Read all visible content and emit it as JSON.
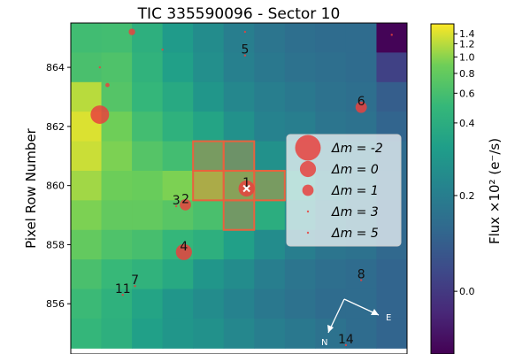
{
  "chart_data": {
    "type": "heatmap",
    "title": "TIC 335590096 - Sector 10",
    "ylabel": "Pixel Row Number",
    "y_ticks": [
      "856",
      "858",
      "860",
      "862",
      "864"
    ],
    "x_range": [
      -0.5,
      10.5
    ],
    "y_range": [
      854.3,
      865.5
    ],
    "grid": false,
    "colorbar": {
      "label": "Flux ×10² (e⁻/s)",
      "colormap": "viridis",
      "ticks": [
        "0.0",
        "0.2",
        "0.4",
        "0.6",
        "0.8",
        "1.0",
        "1.2",
        "1.4"
      ],
      "tick_values": [
        0.0,
        0.2,
        0.4,
        0.6,
        0.8,
        1.0,
        1.2,
        1.4
      ]
    },
    "rows": [
      {
        "row": 865,
        "values": [
          0.57,
          0.58,
          0.42,
          0.32,
          0.26,
          0.2,
          0.17,
          0.15,
          0.14,
          0.14,
          -0.3
        ]
      },
      {
        "row": 864,
        "values": [
          0.62,
          0.66,
          0.46,
          0.34,
          0.27,
          0.21,
          0.18,
          0.16,
          0.15,
          0.14,
          0.02
        ]
      },
      {
        "row": 863,
        "values": [
          1.2,
          0.7,
          0.5,
          0.38,
          0.3,
          0.24,
          0.2,
          0.18,
          0.16,
          0.15,
          0.1
        ]
      },
      {
        "row": 862,
        "values": [
          1.4,
          0.9,
          0.58,
          0.44,
          0.36,
          0.28,
          0.22,
          0.2,
          0.17,
          0.16,
          0.12
        ]
      },
      {
        "row": 861,
        "values": [
          1.3,
          0.95,
          0.7,
          0.58,
          0.55,
          0.4,
          0.28,
          0.24,
          0.2,
          0.18,
          0.14
        ]
      },
      {
        "row": 860,
        "values": [
          1.1,
          0.88,
          0.85,
          0.95,
          1.0,
          0.7,
          0.55,
          0.32,
          0.22,
          0.18,
          0.14
        ]
      },
      {
        "row": 859,
        "values": [
          0.95,
          0.8,
          0.8,
          0.72,
          0.62,
          0.5,
          0.4,
          0.26,
          0.2,
          0.17,
          0.13
        ]
      },
      {
        "row": 858,
        "values": [
          0.8,
          0.66,
          0.6,
          0.5,
          0.42,
          0.34,
          0.26,
          0.2,
          0.17,
          0.16,
          0.13
        ]
      },
      {
        "row": 857,
        "values": [
          0.62,
          0.52,
          0.46,
          0.38,
          0.3,
          0.26,
          0.2,
          0.17,
          0.15,
          0.14,
          0.12
        ]
      },
      {
        "row": 856,
        "values": [
          0.54,
          0.44,
          0.36,
          0.3,
          0.26,
          0.22,
          0.18,
          0.16,
          0.14,
          0.14,
          0.12
        ]
      },
      {
        "row": 855,
        "values": [
          0.5,
          0.42,
          0.34,
          0.3,
          0.28,
          0.24,
          0.2,
          0.18,
          0.16,
          0.14,
          0.12
        ]
      }
    ],
    "aperture": [
      {
        "col": 4,
        "row": 861
      },
      {
        "col": 5,
        "row": 861
      },
      {
        "col": 4,
        "row": 860
      },
      {
        "col": 5,
        "row": 860
      },
      {
        "col": 6,
        "row": 860
      },
      {
        "col": 5,
        "row": 859
      }
    ],
    "stars": [
      {
        "label": "1",
        "x": 5.25,
        "y": 859.9,
        "dm": 0
      },
      {
        "label": "2",
        "x": 3.25,
        "y": 859.35,
        "dm": 1
      },
      {
        "label": "3",
        "x": 2.95,
        "y": 859.3,
        "dm": 4
      },
      {
        "label": "4",
        "x": 3.2,
        "y": 857.75,
        "dm": 0
      },
      {
        "label": "5",
        "x": 5.2,
        "y": 864.4,
        "dm": 5
      },
      {
        "label": "6",
        "x": 9.0,
        "y": 862.65,
        "dm": 1
      },
      {
        "label": "7",
        "x": 1.6,
        "y": 856.6,
        "dm": 5
      },
      {
        "label": "8",
        "x": 9.0,
        "y": 856.8,
        "dm": 5
      },
      {
        "label": "11",
        "x": 1.2,
        "y": 856.3,
        "dm": 5
      },
      {
        "label": "14",
        "x": 8.5,
        "y": 854.6,
        "dm": 5
      },
      {
        "label": "",
        "x": 0.45,
        "y": 862.4,
        "dm": -0.5
      },
      {
        "label": "",
        "x": 0.7,
        "y": 863.4,
        "dm": 2.5
      },
      {
        "label": "",
        "x": 1.5,
        "y": 865.2,
        "dm": 2
      },
      {
        "label": "",
        "x": 0.45,
        "y": 864.0,
        "dm": 4.5
      },
      {
        "label": "",
        "x": 5.2,
        "y": 865.2,
        "dm": 3.5
      },
      {
        "label": "",
        "x": 2.5,
        "y": 864.6,
        "dm": 5
      },
      {
        "label": "",
        "x": 10.0,
        "y": 865.1,
        "dm": 4.5
      }
    ],
    "target_star": "1",
    "legend": {
      "placement": "center-right",
      "entries": [
        {
          "label": "Δm = -2",
          "dm": -2
        },
        {
          "label": "Δm = 0",
          "dm": 0
        },
        {
          "label": "Δm = 1",
          "dm": 1
        },
        {
          "label": "Δm = 3",
          "dm": 3
        },
        {
          "label": "Δm = 5",
          "dm": 5
        }
      ]
    },
    "compass": {
      "east": "E",
      "north": "N"
    },
    "colors": {
      "star": "#e8423e",
      "aperture": "#e8623e",
      "target_marker": "#ffffff"
    }
  }
}
